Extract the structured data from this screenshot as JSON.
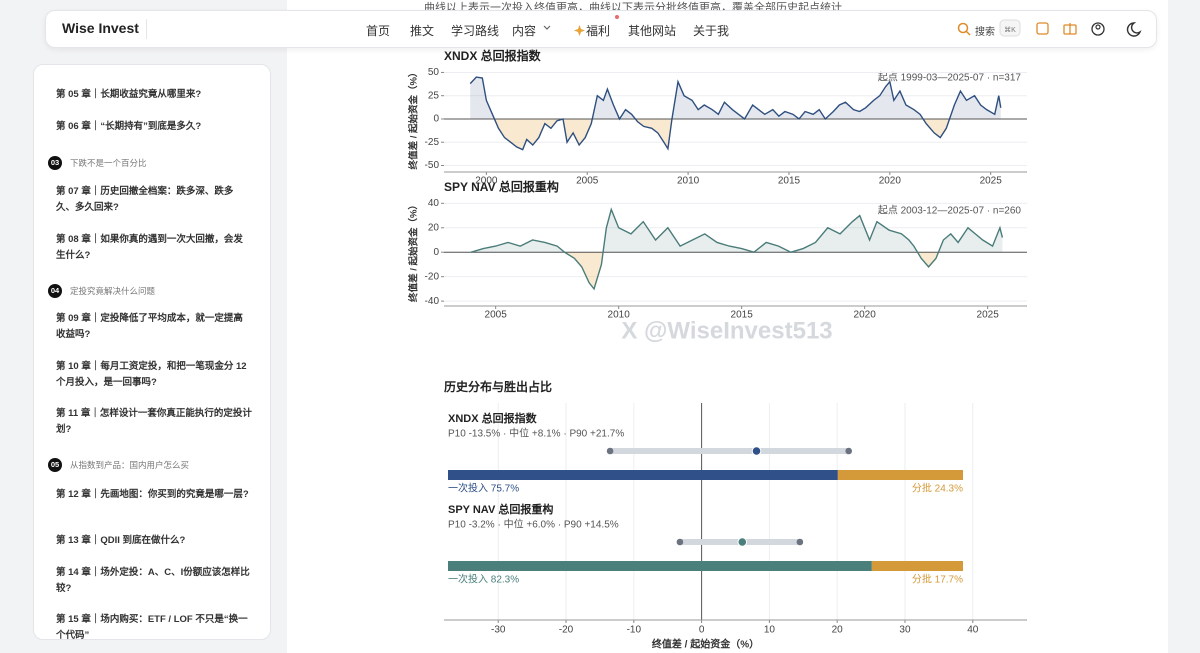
{
  "nav": {
    "brand": "Wise Invest",
    "links": [
      "首页",
      "推文",
      "学习路线",
      "内容",
      "福利",
      "其他网站",
      "关于我"
    ],
    "search": "搜索",
    "shortcut": "⌘K"
  },
  "intro": "曲线以上表示一次投入终值更高，曲线以下表示分批终值更高，覆盖全部历史起点统计",
  "watermark": "X @WiseInvest513",
  "sidebar": {
    "chapters": [
      "第 05 章｜长期收益究竟从哪里来?",
      "第 06 章｜“长期持有”到底是多久?"
    ],
    "sections": [
      {
        "number": "03",
        "title": "下跌不是一个百分比",
        "chapters": [
          "第 07 章｜历史回撤全档案：跌多深、跌多久、多久回来?",
          "第 08 章｜如果你真的遇到一次大回撤，会发生什么?"
        ]
      },
      {
        "number": "04",
        "title": "定投究竟解决什么问题",
        "chapters": [
          "第 09 章｜定投降低了平均成本，就一定提高收益吗?",
          "第 10 章｜每月工资定投，和把一笔现金分 12 个月投入，是一回事吗?",
          "第 11 章｜怎样设计一套你真正能执行的定投计划?"
        ]
      },
      {
        "number": "05",
        "title": "从指数到产品：国内用户怎么买",
        "chapters": [
          "第 12 章｜先画地图：你买到的究竟是哪一层?",
          "第 13 章｜QDII 到底在做什么?",
          "第 14 章｜场外定投：A、C、I份额应该怎样比较?",
          "第 15 章｜场内购买：ETF / LOF 不只是“换一个代码”"
        ]
      }
    ]
  },
  "chart_data": [
    {
      "type": "line",
      "title": "XNDX 总回报指数",
      "annotation": "起点 1999-03—2025-07 · n=317",
      "y_label": "终值差 / 起始资金（%）",
      "color": "#2f4f7f",
      "x": [
        1999.2,
        1999.5,
        1999.8,
        2000.0,
        2000.3,
        2000.6,
        2000.9,
        2001.2,
        2001.5,
        2001.8,
        2002.0,
        2002.3,
        2002.6,
        2002.9,
        2003.2,
        2003.5,
        2003.8,
        2004.0,
        2004.3,
        2004.6,
        2004.9,
        2005.2,
        2005.5,
        2005.8,
        2006.0,
        2006.3,
        2006.6,
        2006.9,
        2007.2,
        2007.5,
        2007.8,
        2008.2,
        2008.5,
        2008.8,
        2009.0,
        2009.2,
        2009.5,
        2009.8,
        2010.2,
        2010.5,
        2010.8,
        2011.2,
        2011.5,
        2011.8,
        2012.2,
        2012.5,
        2012.8,
        2013.2,
        2013.5,
        2013.8,
        2014.2,
        2014.5,
        2014.8,
        2015.2,
        2015.5,
        2015.8,
        2016.2,
        2016.5,
        2016.8,
        2017.2,
        2017.5,
        2017.8,
        2018.2,
        2018.5,
        2018.8,
        2019.2,
        2019.5,
        2019.8,
        2020.0,
        2020.2,
        2020.5,
        2020.8,
        2021.2,
        2021.5,
        2021.8,
        2022.2,
        2022.5,
        2022.8,
        2023.2,
        2023.5,
        2023.8,
        2024.2,
        2024.5,
        2024.8,
        2025.2,
        2025.4,
        2025.5
      ],
      "values": [
        38,
        45,
        44,
        20,
        5,
        -10,
        -20,
        -25,
        -30,
        -33,
        -22,
        -28,
        -20,
        -5,
        -10,
        -2,
        0,
        -25,
        -15,
        -28,
        -20,
        -5,
        25,
        20,
        32,
        15,
        0,
        10,
        5,
        -3,
        -8,
        -10,
        -15,
        -25,
        -32,
        0,
        40,
        25,
        20,
        10,
        15,
        10,
        5,
        18,
        10,
        5,
        0,
        15,
        10,
        5,
        10,
        3,
        8,
        5,
        0,
        8,
        5,
        10,
        0,
        8,
        15,
        18,
        10,
        8,
        12,
        20,
        25,
        35,
        40,
        20,
        30,
        15,
        10,
        5,
        -5,
        -15,
        -20,
        -10,
        15,
        30,
        20,
        25,
        15,
        10,
        5,
        25,
        12
      ],
      "xlim": [
        1997.9,
        2026.8
      ],
      "xticks": [
        2000,
        2005,
        2010,
        2015,
        2020,
        2025
      ],
      "ylim": [
        -57,
        58
      ],
      "yticks": [
        -50,
        -25,
        0,
        25,
        50
      ],
      "grid": true
    },
    {
      "type": "line",
      "title": "SPY NAV 总回报重构",
      "annotation": "起点 2003-12—2025-07 · n=260",
      "y_label": "终值差 / 起始资金（%）",
      "color": "#4a7c7a",
      "x": [
        2004.0,
        2004.5,
        2005.0,
        2005.5,
        2006.0,
        2006.5,
        2007.0,
        2007.5,
        2007.8,
        2008.2,
        2008.5,
        2008.8,
        2009.0,
        2009.3,
        2009.5,
        2009.7,
        2010.0,
        2010.5,
        2011.0,
        2011.5,
        2012.0,
        2012.5,
        2013.0,
        2013.5,
        2014.0,
        2014.5,
        2015.0,
        2015.5,
        2016.0,
        2016.5,
        2017.0,
        2017.5,
        2018.0,
        2018.5,
        2019.0,
        2019.5,
        2019.8,
        2020.2,
        2020.5,
        2021.0,
        2021.5,
        2021.8,
        2022.0,
        2022.3,
        2022.6,
        2022.9,
        2023.2,
        2023.5,
        2023.8,
        2024.2,
        2024.5,
        2024.8,
        2025.2,
        2025.5,
        2025.6
      ],
      "values": [
        0,
        3,
        5,
        8,
        5,
        10,
        8,
        5,
        0,
        -5,
        -12,
        -25,
        -30,
        -10,
        20,
        35,
        20,
        15,
        25,
        10,
        20,
        5,
        10,
        15,
        8,
        5,
        3,
        0,
        8,
        5,
        0,
        3,
        8,
        20,
        15,
        25,
        30,
        10,
        25,
        18,
        15,
        10,
        5,
        -5,
        -12,
        -5,
        10,
        15,
        8,
        20,
        15,
        10,
        5,
        20,
        12
      ],
      "xlim": [
        2002.9,
        2026.6
      ],
      "xticks": [
        2005,
        2010,
        2015,
        2020,
        2025
      ],
      "ylim": [
        -44,
        46
      ],
      "yticks": [
        -40,
        -20,
        0,
        20,
        40
      ],
      "grid": true
    },
    {
      "type": "range",
      "title": "历史分布与胜出占比",
      "x_label": "终值差 / 起始资金（%）",
      "xlim": [
        -38,
        48
      ],
      "xticks": [
        -30,
        -20,
        -10,
        0,
        10,
        20,
        30,
        40
      ],
      "grid": true,
      "series": [
        {
          "name": "XNDX 总回报指数",
          "summary": "P10 -13.5% · 中位 +8.1% · P90 +21.7%",
          "p10": -13.5,
          "median": 8.1,
          "p90": 21.7,
          "color": "#2f5088",
          "lump_share": 75.7,
          "lump_label": "一次投入 75.7%",
          "batch_share": 24.3,
          "batch_label": "分批 24.3%",
          "batch_color": "#d49a3a"
        },
        {
          "name": "SPY NAV 总回报重构",
          "summary": "P10 -3.2% · 中位 +6.0% · P90 +14.5%",
          "p10": -3.2,
          "median": 6.0,
          "p90": 14.5,
          "color": "#4a7f7c",
          "lump_share": 82.3,
          "lump_label": "一次投入 82.3%",
          "batch_share": 17.7,
          "batch_label": "分批 17.7%",
          "batch_color": "#d49a3a"
        }
      ]
    }
  ]
}
